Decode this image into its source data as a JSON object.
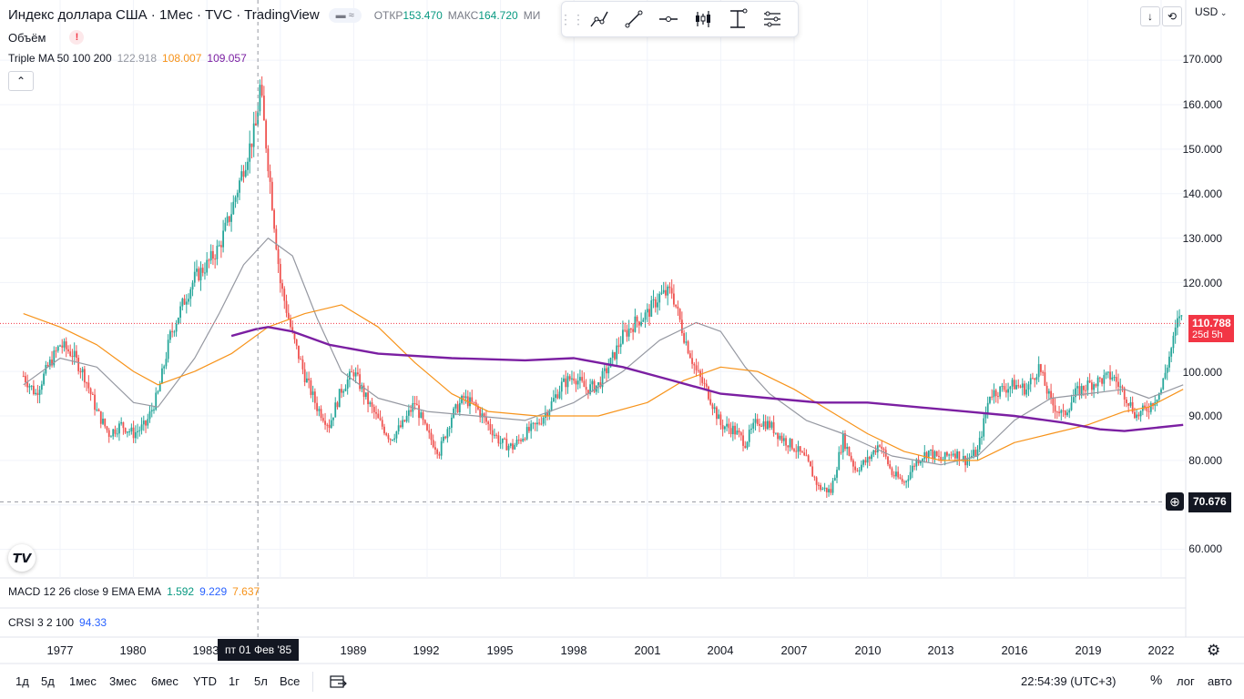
{
  "header": {
    "title": "Индекс доллара США · 1Мес · TVC · TradingView",
    "open_label": "ОТКР",
    "open_value": "153.470",
    "high_label": "МАКС",
    "high_value": "164.720",
    "truncated_label": "МИ"
  },
  "legend": {
    "volume_label": "Объём",
    "volume_warning": "!",
    "ma_label": "Triple MA 50 100 200",
    "ma_values": [
      "122.918",
      "108.007",
      "109.057"
    ],
    "macd_label": "MACD 12 26 close 9 EMA EMA",
    "macd_values": [
      "1.592",
      "9.229",
      "7.637"
    ],
    "crsi_label": "CRSI 3 2 100",
    "crsi_value": "94.33"
  },
  "price_scale": {
    "currency": "USD",
    "ticks": [
      "170.000",
      "160.000",
      "150.000",
      "140.000",
      "130.000",
      "120.000",
      "100.000",
      "90.000",
      "80.000",
      "60.000"
    ],
    "last_price": "110.788",
    "last_price_countdown": "25d 5h",
    "crosshair_price": "70.676"
  },
  "time_scale": {
    "ticks": [
      "1977",
      "1980",
      "1983",
      "1989",
      "1992",
      "1995",
      "1998",
      "2001",
      "2004",
      "2007",
      "2010",
      "2013",
      "2016",
      "2019",
      "2022"
    ],
    "crosshair_label": "пт 01 Фев '85"
  },
  "bottom_bar": {
    "ranges": [
      "1д",
      "5д",
      "1мес",
      "3мес",
      "6мес",
      "YTD",
      "1г",
      "5л",
      "Все"
    ],
    "clock": "22:54:39 (UTC+3)",
    "percent": "%",
    "log": "лог",
    "auto": "авто"
  },
  "chart_data": {
    "type": "candlestick",
    "symbol": "Индекс доллара США",
    "interval": "1Мес",
    "y_range": [
      55,
      175
    ],
    "x_range": [
      1975.5,
      2023.0
    ],
    "crosshair": {
      "date": "1985-02-01",
      "price": 70.676
    },
    "last_price": 110.788,
    "colors": {
      "up": "#26a69a",
      "down": "#ef5350",
      "ma50": "#9598a1",
      "ma100": "#f7931a",
      "ma200": "#7b1fa2",
      "last_price": "#f23645"
    },
    "path_points": [
      [
        1975.5,
        99
      ],
      [
        1976.0,
        95
      ],
      [
        1976.5,
        101
      ],
      [
        1977.0,
        106
      ],
      [
        1977.5,
        104
      ],
      [
        1978.0,
        99
      ],
      [
        1978.5,
        91
      ],
      [
        1979.0,
        86
      ],
      [
        1979.5,
        88
      ],
      [
        1980.0,
        86
      ],
      [
        1980.5,
        88
      ],
      [
        1981.0,
        95
      ],
      [
        1981.5,
        108
      ],
      [
        1982.0,
        115
      ],
      [
        1982.5,
        121
      ],
      [
        1983.0,
        124
      ],
      [
        1983.5,
        128
      ],
      [
        1984.0,
        136
      ],
      [
        1984.5,
        146
      ],
      [
        1985.0,
        155
      ],
      [
        1985.17,
        164
      ],
      [
        1985.5,
        147
      ],
      [
        1986.0,
        120
      ],
      [
        1986.5,
        108
      ],
      [
        1987.0,
        99
      ],
      [
        1987.5,
        92
      ],
      [
        1988.0,
        88
      ],
      [
        1988.5,
        96
      ],
      [
        1989.0,
        100
      ],
      [
        1989.5,
        94
      ],
      [
        1990.0,
        89
      ],
      [
        1990.5,
        85
      ],
      [
        1991.0,
        88
      ],
      [
        1991.5,
        93
      ],
      [
        1992.0,
        86
      ],
      [
        1992.5,
        82
      ],
      [
        1993.0,
        90
      ],
      [
        1993.5,
        94
      ],
      [
        1994.0,
        92
      ],
      [
        1994.5,
        88
      ],
      [
        1995.0,
        84
      ],
      [
        1995.5,
        83
      ],
      [
        1996.0,
        86
      ],
      [
        1996.5,
        88
      ],
      [
        1997.0,
        92
      ],
      [
        1997.5,
        97
      ],
      [
        1998.0,
        99
      ],
      [
        1998.5,
        96
      ],
      [
        1999.0,
        97
      ],
      [
        1999.5,
        102
      ],
      [
        2000.0,
        108
      ],
      [
        2000.5,
        111
      ],
      [
        2001.0,
        113
      ],
      [
        2001.5,
        117
      ],
      [
        2002.0,
        118
      ],
      [
        2002.5,
        108
      ],
      [
        2003.0,
        100
      ],
      [
        2003.5,
        95
      ],
      [
        2004.0,
        88
      ],
      [
        2004.5,
        87
      ],
      [
        2005.0,
        84
      ],
      [
        2005.5,
        89
      ],
      [
        2006.0,
        88
      ],
      [
        2006.5,
        85
      ],
      [
        2007.0,
        83
      ],
      [
        2007.5,
        80
      ],
      [
        2008.0,
        74
      ],
      [
        2008.5,
        73
      ],
      [
        2009.0,
        85
      ],
      [
        2009.5,
        78
      ],
      [
        2010.0,
        80
      ],
      [
        2010.5,
        84
      ],
      [
        2011.0,
        77
      ],
      [
        2011.5,
        75
      ],
      [
        2012.0,
        80
      ],
      [
        2012.5,
        82
      ],
      [
        2013.0,
        80
      ],
      [
        2013.5,
        82
      ],
      [
        2014.0,
        80
      ],
      [
        2014.5,
        82
      ],
      [
        2015.0,
        95
      ],
      [
        2015.5,
        96
      ],
      [
        2016.0,
        97
      ],
      [
        2016.5,
        96
      ],
      [
        2017.0,
        101
      ],
      [
        2017.5,
        93
      ],
      [
        2018.0,
        90
      ],
      [
        2018.5,
        95
      ],
      [
        2019.0,
        97
      ],
      [
        2019.5,
        98
      ],
      [
        2020.0,
        99
      ],
      [
        2020.5,
        95
      ],
      [
        2021.0,
        90
      ],
      [
        2021.5,
        92
      ],
      [
        2022.0,
        96
      ],
      [
        2022.5,
        107
      ],
      [
        2022.75,
        113
      ],
      [
        2022.9,
        110.788
      ]
    ],
    "ma_series": [
      {
        "period": 50,
        "points": [
          [
            1975.5,
            97
          ],
          [
            1977.0,
            103
          ],
          [
            1978.5,
            101
          ],
          [
            1980.0,
            93
          ],
          [
            1981.0,
            92
          ],
          [
            1982.5,
            103
          ],
          [
            1983.5,
            113
          ],
          [
            1984.5,
            124
          ],
          [
            1985.5,
            130
          ],
          [
            1986.5,
            126
          ],
          [
            1987.5,
            112
          ],
          [
            1988.5,
            100
          ],
          [
            1990.0,
            94
          ],
          [
            1992.0,
            91
          ],
          [
            1994.0,
            90
          ],
          [
            1996.0,
            89
          ],
          [
            1998.0,
            93
          ],
          [
            2000.0,
            100
          ],
          [
            2001.5,
            107
          ],
          [
            2003.0,
            111
          ],
          [
            2004.0,
            109
          ],
          [
            2005.0,
            101
          ],
          [
            2006.0,
            95
          ],
          [
            2007.5,
            89
          ],
          [
            2009.0,
            86
          ],
          [
            2011.0,
            81
          ],
          [
            2013.0,
            79
          ],
          [
            2014.5,
            81
          ],
          [
            2016.0,
            89
          ],
          [
            2017.5,
            94
          ],
          [
            2019.0,
            95
          ],
          [
            2020.5,
            96
          ],
          [
            2021.5,
            94
          ],
          [
            2022.9,
            97
          ]
        ]
      },
      {
        "period": 100,
        "points": [
          [
            1975.5,
            113
          ],
          [
            1977.0,
            110
          ],
          [
            1978.5,
            106
          ],
          [
            1980.0,
            100
          ],
          [
            1981.0,
            97
          ],
          [
            1982.5,
            100
          ],
          [
            1984.0,
            104
          ],
          [
            1985.5,
            110
          ],
          [
            1987.0,
            113
          ],
          [
            1988.5,
            115
          ],
          [
            1990.0,
            110
          ],
          [
            1991.5,
            102
          ],
          [
            1993.0,
            95
          ],
          [
            1994.5,
            91
          ],
          [
            1996.5,
            90
          ],
          [
            1999.0,
            90
          ],
          [
            2001.0,
            93
          ],
          [
            2002.5,
            98
          ],
          [
            2004.0,
            101
          ],
          [
            2005.5,
            100
          ],
          [
            2007.0,
            96
          ],
          [
            2008.5,
            91
          ],
          [
            2010.0,
            86
          ],
          [
            2011.5,
            82
          ],
          [
            2013.0,
            80
          ],
          [
            2014.5,
            80
          ],
          [
            2016.0,
            84
          ],
          [
            2017.5,
            86
          ],
          [
            2019.0,
            88
          ],
          [
            2020.5,
            91
          ],
          [
            2021.5,
            92
          ],
          [
            2022.9,
            96
          ]
        ]
      },
      {
        "period": 200,
        "points": [
          [
            1984.0,
            108
          ],
          [
            1985.0,
            109.5
          ],
          [
            1985.5,
            110
          ],
          [
            1986.5,
            109
          ],
          [
            1988.0,
            106
          ],
          [
            1990.0,
            104
          ],
          [
            1993.0,
            103
          ],
          [
            1996.0,
            102.5
          ],
          [
            1998.0,
            103
          ],
          [
            2000.0,
            101
          ],
          [
            2002.0,
            98
          ],
          [
            2004.0,
            95
          ],
          [
            2006.0,
            94
          ],
          [
            2008.0,
            93
          ],
          [
            2010.0,
            93
          ],
          [
            2012.0,
            92
          ],
          [
            2014.0,
            91
          ],
          [
            2016.0,
            90
          ],
          [
            2018.0,
            88.5
          ],
          [
            2019.5,
            87
          ],
          [
            2020.5,
            86.6
          ],
          [
            2022.9,
            88
          ]
        ]
      }
    ]
  }
}
